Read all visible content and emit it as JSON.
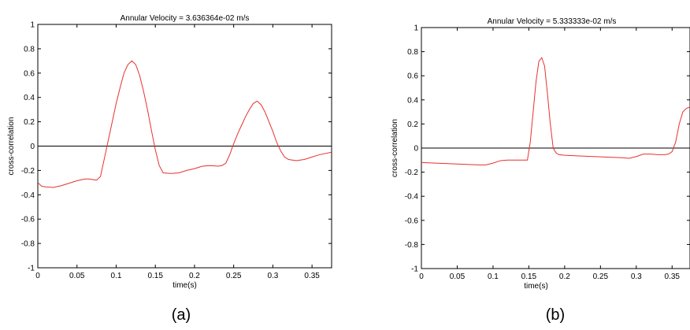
{
  "chart_data": [
    {
      "type": "line",
      "panel_label": "(a)",
      "title": "Annular Velocity = 3.636364e-02 m/s",
      "xlabel": "time(s)",
      "ylabel": "cross-correlation",
      "xlim": [
        0,
        0.375
      ],
      "ylim": [
        -1,
        1
      ],
      "xticks": [
        0,
        0.05,
        0.1,
        0.15,
        0.2,
        0.25,
        0.3,
        0.35
      ],
      "xtick_labels": [
        "0",
        "0.05",
        "0.1",
        "0.15",
        "0.2",
        "0.25",
        "0.3",
        "0.35"
      ],
      "yticks": [
        -1,
        -0.8,
        -0.6,
        -0.4,
        -0.2,
        0,
        0.2,
        0.4,
        0.6,
        0.8,
        1
      ],
      "ytick_labels": [
        "-1",
        "-0.8",
        "-0.6",
        "-0.4",
        "-0.2",
        "0",
        "0.2",
        "0.4",
        "0.6",
        "0.8",
        "1"
      ],
      "line_color": "#e8312f",
      "zero_line_color": "#000000",
      "series": [
        {
          "x": [
            0,
            0.005,
            0.01,
            0.02,
            0.03,
            0.04,
            0.05,
            0.06,
            0.065,
            0.07,
            0.075,
            0.08,
            0.085,
            0.09,
            0.095,
            0.1,
            0.105,
            0.11,
            0.115,
            0.12,
            0.125,
            0.13,
            0.135,
            0.14,
            0.145,
            0.15,
            0.155,
            0.16,
            0.17,
            0.18,
            0.19,
            0.2,
            0.21,
            0.22,
            0.23,
            0.235,
            0.24,
            0.245,
            0.25,
            0.255,
            0.26,
            0.265,
            0.27,
            0.275,
            0.28,
            0.285,
            0.29,
            0.295,
            0.3,
            0.305,
            0.31,
            0.315,
            0.32,
            0.33,
            0.34,
            0.35,
            0.36,
            0.375
          ],
          "y": [
            -0.3,
            -0.33,
            -0.335,
            -0.34,
            -0.325,
            -0.305,
            -0.285,
            -0.27,
            -0.27,
            -0.275,
            -0.28,
            -0.25,
            -0.1,
            0.05,
            0.2,
            0.35,
            0.48,
            0.6,
            0.67,
            0.7,
            0.67,
            0.58,
            0.45,
            0.3,
            0.13,
            -0.03,
            -0.16,
            -0.22,
            -0.225,
            -0.22,
            -0.2,
            -0.185,
            -0.165,
            -0.16,
            -0.165,
            -0.16,
            -0.14,
            -0.07,
            0.02,
            0.1,
            0.17,
            0.24,
            0.3,
            0.35,
            0.37,
            0.34,
            0.28,
            0.2,
            0.12,
            0.03,
            -0.04,
            -0.09,
            -0.11,
            -0.12,
            -0.11,
            -0.09,
            -0.07,
            -0.05
          ]
        }
      ]
    },
    {
      "type": "line",
      "panel_label": "(b)",
      "title": "Annular Velocity = 5.333333e-02 m/s",
      "xlabel": "time(s)",
      "ylabel": "cross-correlation",
      "xlim": [
        0,
        0.375
      ],
      "ylim": [
        -1,
        1
      ],
      "xticks": [
        0,
        0.05,
        0.1,
        0.15,
        0.2,
        0.25,
        0.3,
        0.35
      ],
      "xtick_labels": [
        "0",
        "0.05",
        "0.1",
        "0.15",
        "0.2",
        "0.25",
        "0.3",
        "0.35"
      ],
      "yticks": [
        -1,
        -0.8,
        -0.6,
        -0.4,
        -0.2,
        0,
        0.2,
        0.4,
        0.6,
        0.8,
        1
      ],
      "ytick_labels": [
        "-1",
        "-0.8",
        "-0.6",
        "-0.4",
        "-0.2",
        "0",
        "0.2",
        "0.4",
        "0.6",
        "0.8",
        "1"
      ],
      "line_color": "#e8312f",
      "zero_line_color": "#000000",
      "series": [
        {
          "x": [
            0,
            0.02,
            0.04,
            0.06,
            0.08,
            0.09,
            0.1,
            0.11,
            0.12,
            0.13,
            0.14,
            0.148,
            0.152,
            0.156,
            0.16,
            0.164,
            0.168,
            0.172,
            0.176,
            0.18,
            0.184,
            0.188,
            0.192,
            0.2,
            0.22,
            0.24,
            0.26,
            0.28,
            0.29,
            0.3,
            0.31,
            0.32,
            0.33,
            0.34,
            0.345,
            0.35,
            0.355,
            0.36,
            0.365,
            0.37,
            0.375
          ],
          "y": [
            -0.12,
            -0.125,
            -0.13,
            -0.135,
            -0.14,
            -0.14,
            -0.125,
            -0.105,
            -0.1,
            -0.1,
            -0.1,
            -0.1,
            0.05,
            0.3,
            0.55,
            0.72,
            0.75,
            0.68,
            0.45,
            0.2,
            0.0,
            -0.04,
            -0.055,
            -0.06,
            -0.065,
            -0.07,
            -0.075,
            -0.08,
            -0.085,
            -0.07,
            -0.05,
            -0.05,
            -0.055,
            -0.055,
            -0.05,
            -0.03,
            0.05,
            0.2,
            0.3,
            0.33,
            0.34
          ]
        }
      ]
    }
  ]
}
